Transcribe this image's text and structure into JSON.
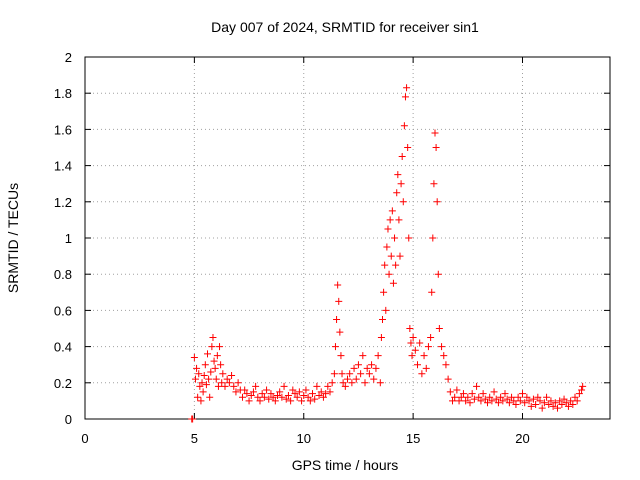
{
  "chart_data": {
    "type": "scatter",
    "title": "Day 007 of 2024, SRMTID for receiver sin1",
    "xlabel": "GPS time / hours",
    "ylabel": "SRMTID / TECUs",
    "xlim": [
      0,
      24
    ],
    "ylim": [
      0,
      2
    ],
    "xticks": [
      0,
      5,
      10,
      15,
      20
    ],
    "xtick_labels": [
      "0",
      "5",
      "10",
      "15",
      "20"
    ],
    "yticks": [
      0,
      0.2,
      0.4,
      0.6,
      0.8,
      1,
      1.2,
      1.4,
      1.6,
      1.8,
      2
    ],
    "ytick_labels": [
      "0",
      "0.2",
      "0.4",
      "0.6",
      "0.8",
      "1",
      "1.2",
      "1.4",
      "1.6",
      "1.8",
      "2"
    ],
    "grid": true,
    "marker": "plus",
    "color": "#ff0000",
    "series": [
      {
        "name": "SRMTID",
        "points": [
          [
            4.88,
            0.0
          ],
          [
            4.92,
            0.0
          ],
          [
            5.0,
            0.34
          ],
          [
            5.05,
            0.22
          ],
          [
            5.1,
            0.28
          ],
          [
            5.15,
            0.12
          ],
          [
            5.2,
            0.25
          ],
          [
            5.25,
            0.18
          ],
          [
            5.3,
            0.1
          ],
          [
            5.35,
            0.2
          ],
          [
            5.4,
            0.15
          ],
          [
            5.45,
            0.24
          ],
          [
            5.5,
            0.3
          ],
          [
            5.55,
            0.19
          ],
          [
            5.6,
            0.36
          ],
          [
            5.65,
            0.22
          ],
          [
            5.7,
            0.12
          ],
          [
            5.75,
            0.26
          ],
          [
            5.8,
            0.4
          ],
          [
            5.85,
            0.45
          ],
          [
            5.9,
            0.32
          ],
          [
            5.95,
            0.28
          ],
          [
            6.0,
            0.22
          ],
          [
            6.05,
            0.35
          ],
          [
            6.1,
            0.18
          ],
          [
            6.15,
            0.4
          ],
          [
            6.2,
            0.3
          ],
          [
            6.25,
            0.2
          ],
          [
            6.3,
            0.25
          ],
          [
            6.4,
            0.18
          ],
          [
            6.5,
            0.22
          ],
          [
            6.6,
            0.2
          ],
          [
            6.7,
            0.24
          ],
          [
            6.8,
            0.18
          ],
          [
            6.9,
            0.15
          ],
          [
            7.0,
            0.2
          ],
          [
            7.1,
            0.16
          ],
          [
            7.2,
            0.12
          ],
          [
            7.3,
            0.16
          ],
          [
            7.4,
            0.14
          ],
          [
            7.5,
            0.1
          ],
          [
            7.6,
            0.13
          ],
          [
            7.7,
            0.15
          ],
          [
            7.8,
            0.18
          ],
          [
            7.9,
            0.12
          ],
          [
            8.0,
            0.1
          ],
          [
            8.1,
            0.14
          ],
          [
            8.2,
            0.12
          ],
          [
            8.3,
            0.16
          ],
          [
            8.4,
            0.11
          ],
          [
            8.5,
            0.14
          ],
          [
            8.6,
            0.12
          ],
          [
            8.7,
            0.1
          ],
          [
            8.8,
            0.13
          ],
          [
            8.9,
            0.15
          ],
          [
            9.0,
            0.12
          ],
          [
            9.1,
            0.18
          ],
          [
            9.2,
            0.11
          ],
          [
            9.3,
            0.13
          ],
          [
            9.4,
            0.1
          ],
          [
            9.5,
            0.16
          ],
          [
            9.6,
            0.14
          ],
          [
            9.7,
            0.12
          ],
          [
            9.8,
            0.15
          ],
          [
            9.9,
            0.1
          ],
          [
            10.0,
            0.13
          ],
          [
            10.1,
            0.16
          ],
          [
            10.2,
            0.12
          ],
          [
            10.3,
            0.1
          ],
          [
            10.4,
            0.14
          ],
          [
            10.5,
            0.11
          ],
          [
            10.6,
            0.18
          ],
          [
            10.7,
            0.13
          ],
          [
            10.8,
            0.15
          ],
          [
            10.9,
            0.12
          ],
          [
            11.0,
            0.14
          ],
          [
            11.1,
            0.18
          ],
          [
            11.2,
            0.15
          ],
          [
            11.3,
            0.2
          ],
          [
            11.4,
            0.25
          ],
          [
            11.45,
            0.4
          ],
          [
            11.5,
            0.55
          ],
          [
            11.55,
            0.74
          ],
          [
            11.6,
            0.65
          ],
          [
            11.65,
            0.48
          ],
          [
            11.7,
            0.35
          ],
          [
            11.75,
            0.25
          ],
          [
            11.8,
            0.2
          ],
          [
            11.9,
            0.18
          ],
          [
            12.0,
            0.22
          ],
          [
            12.1,
            0.25
          ],
          [
            12.2,
            0.2
          ],
          [
            12.3,
            0.28
          ],
          [
            12.4,
            0.22
          ],
          [
            12.5,
            0.3
          ],
          [
            12.6,
            0.25
          ],
          [
            12.7,
            0.35
          ],
          [
            12.8,
            0.2
          ],
          [
            12.9,
            0.28
          ],
          [
            13.0,
            0.25
          ],
          [
            13.1,
            0.3
          ],
          [
            13.2,
            0.22
          ],
          [
            13.3,
            0.28
          ],
          [
            13.4,
            0.35
          ],
          [
            13.5,
            0.2
          ],
          [
            13.55,
            0.45
          ],
          [
            13.6,
            0.55
          ],
          [
            13.65,
            0.7
          ],
          [
            13.7,
            0.85
          ],
          [
            13.75,
            0.6
          ],
          [
            13.8,
            0.95
          ],
          [
            13.85,
            1.05
          ],
          [
            13.9,
            0.8
          ],
          [
            13.95,
            1.1
          ],
          [
            14.0,
            0.9
          ],
          [
            14.05,
            1.15
          ],
          [
            14.1,
            0.75
          ],
          [
            14.15,
            1.0
          ],
          [
            14.2,
            0.85
          ],
          [
            14.25,
            1.25
          ],
          [
            14.3,
            1.35
          ],
          [
            14.35,
            1.1
          ],
          [
            14.4,
            0.9
          ],
          [
            14.45,
            1.3
          ],
          [
            14.5,
            1.45
          ],
          [
            14.55,
            1.2
          ],
          [
            14.6,
            1.62
          ],
          [
            14.65,
            1.78
          ],
          [
            14.7,
            1.83
          ],
          [
            14.75,
            1.5
          ],
          [
            14.8,
            1.0
          ],
          [
            14.85,
            0.5
          ],
          [
            14.9,
            0.42
          ],
          [
            14.95,
            0.35
          ],
          [
            15.0,
            0.45
          ],
          [
            15.1,
            0.38
          ],
          [
            15.2,
            0.3
          ],
          [
            15.3,
            0.42
          ],
          [
            15.4,
            0.25
          ],
          [
            15.5,
            0.35
          ],
          [
            15.6,
            0.28
          ],
          [
            15.7,
            0.4
          ],
          [
            15.8,
            0.45
          ],
          [
            15.85,
            0.7
          ],
          [
            15.9,
            1.0
          ],
          [
            15.95,
            1.3
          ],
          [
            16.0,
            1.58
          ],
          [
            16.05,
            1.5
          ],
          [
            16.1,
            1.2
          ],
          [
            16.15,
            0.8
          ],
          [
            16.2,
            0.5
          ],
          [
            16.3,
            0.4
          ],
          [
            16.4,
            0.35
          ],
          [
            16.5,
            0.3
          ],
          [
            16.6,
            0.22
          ],
          [
            16.7,
            0.15
          ],
          [
            16.8,
            0.1
          ],
          [
            16.9,
            0.12
          ],
          [
            17.0,
            0.16
          ],
          [
            17.1,
            0.1
          ],
          [
            17.2,
            0.12
          ],
          [
            17.3,
            0.14
          ],
          [
            17.4,
            0.1
          ],
          [
            17.5,
            0.12
          ],
          [
            17.6,
            0.09
          ],
          [
            17.7,
            0.14
          ],
          [
            17.8,
            0.11
          ],
          [
            17.9,
            0.18
          ],
          [
            18.0,
            0.12
          ],
          [
            18.1,
            0.1
          ],
          [
            18.2,
            0.14
          ],
          [
            18.3,
            0.11
          ],
          [
            18.4,
            0.09
          ],
          [
            18.5,
            0.12
          ],
          [
            18.6,
            0.1
          ],
          [
            18.7,
            0.15
          ],
          [
            18.8,
            0.11
          ],
          [
            18.9,
            0.09
          ],
          [
            19.0,
            0.12
          ],
          [
            19.1,
            0.1
          ],
          [
            19.2,
            0.14
          ],
          [
            19.3,
            0.11
          ],
          [
            19.4,
            0.09
          ],
          [
            19.5,
            0.12
          ],
          [
            19.6,
            0.1
          ],
          [
            19.7,
            0.08
          ],
          [
            19.8,
            0.12
          ],
          [
            19.9,
            0.1
          ],
          [
            20.0,
            0.14
          ],
          [
            20.1,
            0.09
          ],
          [
            20.2,
            0.12
          ],
          [
            20.3,
            0.1
          ],
          [
            20.4,
            0.07
          ],
          [
            20.5,
            0.11
          ],
          [
            20.6,
            0.08
          ],
          [
            20.7,
            0.12
          ],
          [
            20.8,
            0.1
          ],
          [
            20.9,
            0.06
          ],
          [
            21.0,
            0.09
          ],
          [
            21.1,
            0.12
          ],
          [
            21.2,
            0.08
          ],
          [
            21.3,
            0.1
          ],
          [
            21.4,
            0.07
          ],
          [
            21.5,
            0.09
          ],
          [
            21.6,
            0.06
          ],
          [
            21.7,
            0.1
          ],
          [
            21.8,
            0.08
          ],
          [
            21.9,
            0.11
          ],
          [
            22.0,
            0.09
          ],
          [
            22.1,
            0.07
          ],
          [
            22.2,
            0.1
          ],
          [
            22.3,
            0.08
          ],
          [
            22.4,
            0.12
          ],
          [
            22.5,
            0.1
          ],
          [
            22.6,
            0.14
          ],
          [
            22.7,
            0.16
          ],
          [
            22.75,
            0.18
          ]
        ]
      }
    ]
  }
}
